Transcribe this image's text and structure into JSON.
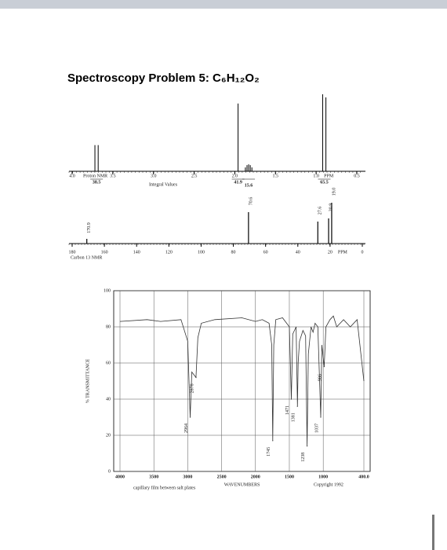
{
  "title": "Spectroscopy Problem 5: C₆H₁₂O₂",
  "h_nmr": {
    "label": "Proton NMR",
    "integral_label": "Integral Values",
    "unit": "PPM",
    "xlim": [
      4.0,
      0.5
    ],
    "xticks": [
      {
        "value": 4,
        "label": "4.0"
      },
      3.5,
      {
        "value": 3,
        "label": "3.0"
      },
      2.5,
      {
        "value": 2,
        "label": "2.0"
      },
      1.5,
      {
        "value": 1,
        "label": "1.0"
      },
      0.5
    ],
    "signals": [
      {
        "ppm": [
          3.72,
          3.68
        ],
        "intensity": [
          34,
          34
        ],
        "integral": 38.5
      },
      {
        "ppm": [
          1.96
        ],
        "intensity": [
          88
        ],
        "integral": 41.9
      },
      {
        "ppm": [
          1.87,
          1.85,
          1.83,
          1.81,
          1.79
        ],
        "intensity": [
          5,
          8,
          9,
          8,
          5
        ],
        "integral": 15.6
      },
      {
        "ppm": [
          0.92,
          0.88
        ],
        "intensity": [
          100,
          96
        ],
        "integral": 65.5
      }
    ]
  },
  "c_nmr": {
    "label": "Carbon 13 NMR",
    "unit": "PPM",
    "xlim": [
      180,
      0
    ],
    "xticks": [
      180,
      160,
      140,
      120,
      100,
      80,
      60,
      40,
      20,
      0
    ],
    "peaks": {
      "ppm": [
        170.9,
        70.6,
        27.6,
        20.9,
        19
      ],
      "ppm_labels": [
        "170.9",
        "70.6",
        "27.6",
        "20.9",
        "19.0"
      ],
      "intensity": [
        6,
        40,
        28,
        32,
        52
      ]
    }
  },
  "ir": {
    "ylabel": "% TRANSMITTANCE",
    "xlabel": "WAVENUMBERS",
    "note": "capillary film between salt plates",
    "copyright": "Copyright 1992",
    "xlim": [
      4000,
      400
    ],
    "ylim": [
      0,
      100
    ],
    "xticks": [
      4000,
      3500,
      3000,
      2500,
      2000,
      1500,
      1000,
      {
        "value": 400,
        "label": "400.0"
      }
    ],
    "yticks": [
      0,
      20,
      40,
      60,
      80,
      100
    ],
    "spectrum": {
      "x": [
        4000,
        3600,
        3400,
        3100,
        3000,
        2964,
        2940,
        2878,
        2850,
        2800,
        2600,
        2200,
        2000,
        1900,
        1800,
        1760,
        1745,
        1730,
        1700,
        1600,
        1500,
        1471,
        1450,
        1400,
        1381,
        1370,
        1350,
        1300,
        1260,
        1238,
        1220,
        1180,
        1150,
        1120,
        1080,
        1037,
        1020,
        986,
        960,
        900,
        850,
        800,
        700,
        600,
        500,
        400
      ],
      "y": [
        83,
        84,
        83,
        84,
        72,
        30,
        55,
        52,
        74,
        82,
        84,
        85,
        83,
        84,
        82,
        70,
        17,
        70,
        84,
        85,
        80,
        40,
        76,
        80,
        36,
        60,
        72,
        78,
        75,
        14,
        65,
        80,
        77,
        82,
        80,
        30,
        70,
        58,
        80,
        84,
        86,
        80,
        84,
        80,
        84,
        50
      ]
    },
    "peaks": {
      "x": [
        2964,
        2878,
        1745,
        1471,
        1381,
        1238,
        1037,
        986
      ],
      "y": [
        30,
        52,
        17,
        40,
        36,
        14,
        30,
        58
      ]
    }
  }
}
